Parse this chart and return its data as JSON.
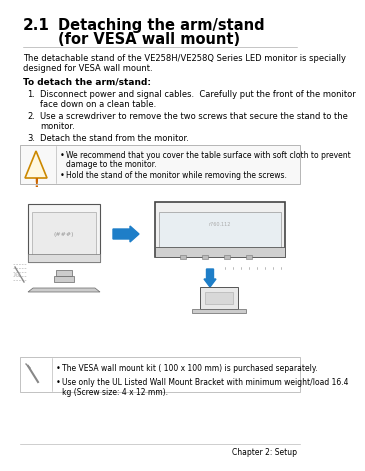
{
  "bg_color": "#ffffff",
  "title_number": "2.1",
  "title_line1": "Detaching the arm/stand",
  "title_line2": "(for VESA wall mount)",
  "intro_text_1": "The detachable stand of the VE258H/VE258Q Series LED monitor is specially",
  "intro_text_2": "designed for VESA wall mount.",
  "bold_heading": "To detach the arm/stand:",
  "step1_a": "Disconnect power and signal cables.  Carefully put the front of the monitor",
  "step1_b": "face down on a clean table.",
  "step2_a": "Use a screwdriver to remove the two screws that secure the stand to the",
  "step2_b": "monitor.",
  "step3": "Detach the stand from the monitor.",
  "warn_b1_a": "We recommend that you cover the table surface with soft cloth to prevent",
  "warn_b1_b": "damage to the monitor.",
  "warn_b2": "Hold the stand of the monitor while removing the screws.",
  "note_b1": "The VESA wall mount kit ( 100 x 100 mm) is purchased separately.",
  "note_b2_a": "Use only the UL Listed Wall Mount Bracket with minimum weight/load 16.4",
  "note_b2_b": "kg (Screw size: 4 x 12 mm).",
  "footer_text": "Chapter 2: Setup",
  "text_color": "#000000",
  "gray_color": "#666666",
  "light_gray": "#aaaaaa",
  "arrow_color": "#1e7ec8",
  "warn_border": "#aaaaaa",
  "warn_fill": "#f8f8f8"
}
